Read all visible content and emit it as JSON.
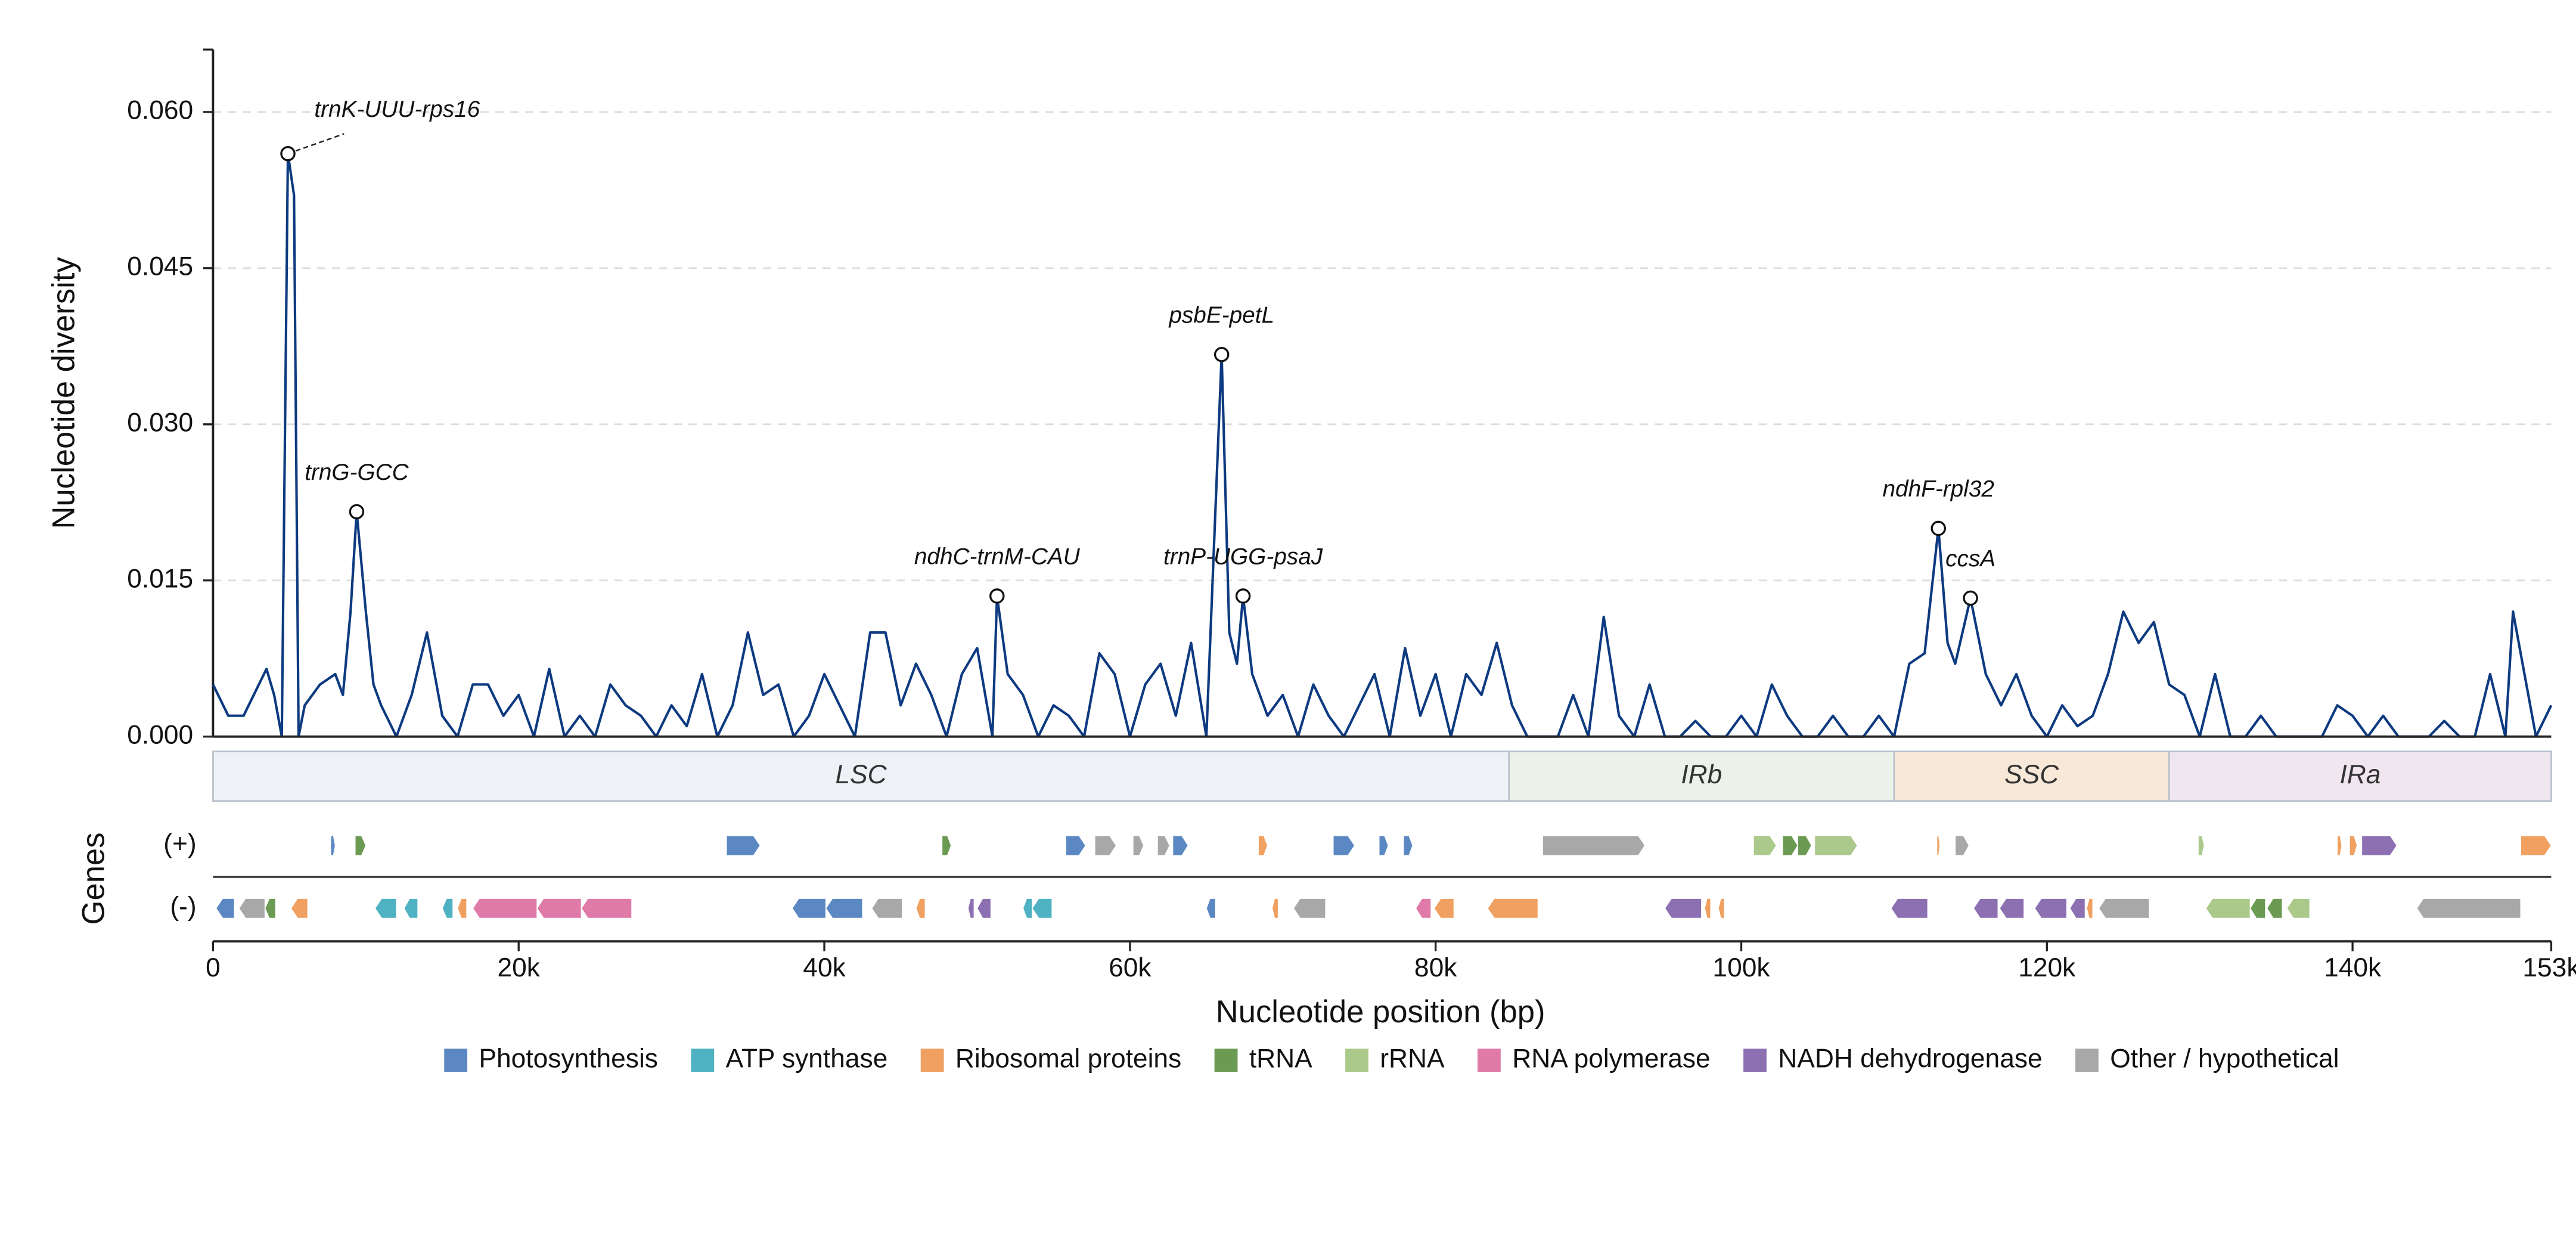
{
  "chart_data": {
    "type": "line",
    "xlabel": "Nucleotide position (bp)",
    "ylabel": "Nucleotide diversity",
    "xlim": [
      0,
      153000
    ],
    "ylim": [
      0,
      0.066
    ],
    "xticks": [
      0,
      {
        "value": 20000,
        "label": "20k"
      },
      {
        "value": 40000,
        "label": "40k"
      },
      {
        "value": 60000,
        "label": "60k"
      },
      {
        "value": 80000,
        "label": "80k"
      },
      {
        "value": 100000,
        "label": "100k"
      },
      {
        "value": 120000,
        "label": "120k"
      },
      {
        "value": 140000,
        "label": "140k"
      },
      {
        "value": 153000,
        "label": "153k"
      }
    ],
    "yticks": [
      {
        "value": 0,
        "label": "0.000"
      },
      {
        "value": 0.015,
        "label": "0.015"
      },
      {
        "value": 0.03,
        "label": "0.030"
      },
      {
        "value": 0.045,
        "label": "0.045"
      },
      {
        "value": 0.06,
        "label": "0.060"
      }
    ],
    "grid": true,
    "x": [
      0,
      1000,
      2000,
      3000,
      3500,
      4000,
      4500,
      4900,
      5300,
      5600,
      6000,
      7000,
      8000,
      8500,
      9000,
      9400,
      10000,
      10500,
      11000,
      12000,
      13000,
      14000,
      15000,
      16000,
      17000,
      18000,
      19000,
      20000,
      21000,
      22000,
      23000,
      24000,
      25000,
      26000,
      27000,
      28000,
      29000,
      30000,
      31000,
      32000,
      33000,
      34000,
      35000,
      36000,
      37000,
      38000,
      39000,
      40000,
      41000,
      42000,
      43000,
      44000,
      45000,
      46000,
      47000,
      48000,
      49000,
      50000,
      51000,
      51300,
      52000,
      53000,
      54000,
      55000,
      56000,
      57000,
      58000,
      59000,
      60000,
      61000,
      62000,
      63000,
      64000,
      65000,
      66000,
      66500,
      67000,
      67400,
      68000,
      69000,
      70000,
      71000,
      72000,
      73000,
      74000,
      75000,
      76000,
      77000,
      78000,
      79000,
      80000,
      81000,
      82000,
      83000,
      84000,
      85000,
      86000,
      87000,
      88000,
      89000,
      90000,
      91000,
      92000,
      93000,
      94000,
      95000,
      96000,
      97000,
      98000,
      99000,
      100000,
      101000,
      102000,
      103000,
      104000,
      105000,
      106000,
      107000,
      108000,
      109000,
      110000,
      111000,
      112000,
      112900,
      113500,
      114000,
      115000,
      116000,
      117000,
      118000,
      119000,
      120000,
      121000,
      122000,
      123000,
      124000,
      125000,
      126000,
      127000,
      128000,
      129000,
      130000,
      131000,
      132000,
      133000,
      134000,
      135000,
      136000,
      137000,
      138000,
      139000,
      140000,
      141000,
      142000,
      143000,
      144000,
      145000,
      146000,
      147000,
      148000,
      149000,
      150000,
      150500,
      151000,
      152000,
      153000
    ],
    "series": [
      {
        "name": "Nucleotide diversity",
        "color": "#0d3a80",
        "values": [
          0.005,
          0.002,
          0.002,
          0.005,
          0.0065,
          0.004,
          0,
          0.056,
          0.052,
          0,
          0.003,
          0.005,
          0.006,
          0.004,
          0.012,
          0.0216,
          0.012,
          0.005,
          0.003,
          0,
          0.004,
          0.01,
          0.002,
          0,
          0.005,
          0.005,
          0.002,
          0.004,
          0,
          0.0065,
          0,
          0.002,
          0,
          0.005,
          0.003,
          0.002,
          0,
          0.003,
          0.001,
          0.006,
          0,
          0.003,
          0.01,
          0.004,
          0.005,
          0,
          0.002,
          0.006,
          0.003,
          0,
          0.01,
          0.01,
          0.003,
          0.007,
          0.004,
          0,
          0.006,
          0.0085,
          0,
          0.0135,
          0.006,
          0.004,
          0,
          0.003,
          0.002,
          0,
          0.008,
          0.006,
          0,
          0.005,
          0.007,
          0.002,
          0.009,
          0,
          0.0367,
          0.01,
          0.007,
          0.0135,
          0.006,
          0.002,
          0.004,
          0,
          0.005,
          0.002,
          0,
          0.003,
          0.006,
          0,
          0.0085,
          0.002,
          0.006,
          0,
          0.006,
          0.004,
          0.009,
          0.003,
          0,
          0,
          0,
          0.004,
          0,
          0.0115,
          0.002,
          0,
          0.005,
          0,
          0,
          0.0015,
          0,
          0,
          0.002,
          0,
          0.005,
          0.002,
          0,
          0,
          0.002,
          0,
          0,
          0.002,
          0,
          0.007,
          0.008,
          0.02,
          0.009,
          0.007,
          0.0133,
          0.006,
          0.003,
          0.006,
          0.002,
          0,
          0.003,
          0.001,
          0.002,
          0.006,
          0.012,
          0.009,
          0.011,
          0.005,
          0.004,
          0,
          0.006,
          0,
          0,
          0.002,
          0,
          0,
          0,
          0,
          0.003,
          0.002,
          0,
          0.002,
          0,
          0,
          0,
          0.0015,
          0,
          0,
          0.006,
          0,
          0.012,
          0.008,
          0,
          0.003
        ]
      }
    ],
    "annotations": [
      {
        "text": "trnK-UUU-rps16",
        "x": 4900,
        "y": 0.056
      },
      {
        "text": "trnG-GCC",
        "x": 9400,
        "y": 0.0216
      },
      {
        "text": "ndhC-trnM-CAU",
        "x": 51300,
        "y": 0.0135
      },
      {
        "text": "psbE-petL",
        "x": 66000,
        "y": 0.0367
      },
      {
        "text": "trnP-UGG-psaJ",
        "x": 67400,
        "y": 0.0135
      },
      {
        "text": "ndhF-rpl32",
        "x": 112900,
        "y": 0.02
      },
      {
        "text": "ccsA",
        "x": 115000,
        "y": 0.0133
      }
    ],
    "regions": [
      {
        "name": "LSC",
        "start": 0,
        "end": 84800,
        "color": "#eef2f6"
      },
      {
        "name": "IRb",
        "start": 84800,
        "end": 110000,
        "color": "#ecf2ea"
      },
      {
        "name": "SSC",
        "start": 110000,
        "end": 128000,
        "color": "#f8e8d8"
      },
      {
        "name": "IRa",
        "start": 128000,
        "end": 153000,
        "color": "#f0e6f0"
      }
    ],
    "genes_label": "Genes",
    "gene_categories": [
      {
        "name": "Photosynthesis",
        "color": "#5b88c2"
      },
      {
        "name": "ATP synthase",
        "color": "#4fb2c2"
      },
      {
        "name": "Ribosomal proteins",
        "color": "#f0a060"
      },
      {
        "name": "tRNA",
        "color": "#6b9a52"
      },
      {
        "name": "rRNA",
        "color": "#aac98a"
      },
      {
        "name": "RNA polymerase",
        "color": "#e07aa8"
      },
      {
        "name": "NADH dehydrogenase",
        "color": "#8c70b2"
      },
      {
        "name": "Other / hypothetical",
        "color": "#a8a8a8"
      }
    ],
    "gene_tracks": [
      {
        "label": "(+)",
        "genes": [
          {
            "start": 7700,
            "end": 8000,
            "category": "Photosynthesis"
          },
          {
            "start": 9300,
            "end": 10000,
            "category": "tRNA"
          },
          {
            "start": 33600,
            "end": 35800,
            "category": "Photosynthesis"
          },
          {
            "start": 47700,
            "end": 48300,
            "category": "tRNA"
          },
          {
            "start": 55800,
            "end": 57100,
            "category": "Photosynthesis"
          },
          {
            "start": 57700,
            "end": 59100,
            "category": "Other / hypothetical"
          },
          {
            "start": 60200,
            "end": 60900,
            "category": "Other / hypothetical"
          },
          {
            "start": 61800,
            "end": 62600,
            "category": "Other / hypothetical"
          },
          {
            "start": 62800,
            "end": 63800,
            "category": "Photosynthesis"
          },
          {
            "start": 68400,
            "end": 69000,
            "category": "Ribosomal proteins"
          },
          {
            "start": 73300,
            "end": 74700,
            "category": "Photosynthesis"
          },
          {
            "start": 76300,
            "end": 76900,
            "category": "Photosynthesis"
          },
          {
            "start": 77900,
            "end": 78500,
            "category": "Photosynthesis"
          },
          {
            "start": 87000,
            "end": 93700,
            "category": "Other / hypothetical"
          },
          {
            "start": 100800,
            "end": 102300,
            "category": "rRNA"
          },
          {
            "start": 102700,
            "end": 103700,
            "category": "tRNA"
          },
          {
            "start": 103700,
            "end": 104600,
            "category": "tRNA"
          },
          {
            "start": 104800,
            "end": 107600,
            "category": "rRNA"
          },
          {
            "start": 112800,
            "end": 113000,
            "category": "Ribosomal proteins"
          },
          {
            "start": 114000,
            "end": 114900,
            "category": "Other / hypothetical"
          },
          {
            "start": 129900,
            "end": 130300,
            "category": "rRNA"
          },
          {
            "start": 139000,
            "end": 139300,
            "category": "Ribosomal proteins"
          },
          {
            "start": 139800,
            "end": 140300,
            "category": "Ribosomal proteins"
          },
          {
            "start": 140600,
            "end": 142900,
            "category": "NADH dehydrogenase"
          },
          {
            "start": 151000,
            "end": 153000,
            "category": "Ribosomal proteins"
          }
        ]
      },
      {
        "label": "(-)",
        "genes": [
          {
            "start": 200,
            "end": 1400,
            "category": "Photosynthesis"
          },
          {
            "start": 1700,
            "end": 3400,
            "category": "Other / hypothetical"
          },
          {
            "start": 3400,
            "end": 4100,
            "category": "tRNA"
          },
          {
            "start": 5100,
            "end": 6200,
            "category": "Ribosomal proteins"
          },
          {
            "start": 10600,
            "end": 12000,
            "category": "ATP synthase"
          },
          {
            "start": 12500,
            "end": 13400,
            "category": "ATP synthase"
          },
          {
            "start": 15000,
            "end": 15700,
            "category": "ATP synthase"
          },
          {
            "start": 16000,
            "end": 16600,
            "category": "Ribosomal proteins"
          },
          {
            "start": 17000,
            "end": 21200,
            "category": "RNA polymerase"
          },
          {
            "start": 21200,
            "end": 24100,
            "category": "RNA polymerase"
          },
          {
            "start": 24100,
            "end": 27400,
            "category": "RNA polymerase"
          },
          {
            "start": 37900,
            "end": 40100,
            "category": "Photosynthesis"
          },
          {
            "start": 40100,
            "end": 42500,
            "category": "Photosynthesis"
          },
          {
            "start": 43100,
            "end": 45100,
            "category": "Other / hypothetical"
          },
          {
            "start": 46000,
            "end": 46600,
            "category": "Ribosomal proteins"
          },
          {
            "start": 49400,
            "end": 49800,
            "category": "NADH dehydrogenase"
          },
          {
            "start": 50000,
            "end": 50900,
            "category": "NADH dehydrogenase"
          },
          {
            "start": 53000,
            "end": 53600,
            "category": "ATP synthase"
          },
          {
            "start": 53600,
            "end": 54900,
            "category": "ATP synthase"
          },
          {
            "start": 65000,
            "end": 65600,
            "category": "Photosynthesis"
          },
          {
            "start": 69300,
            "end": 69700,
            "category": "Ribosomal proteins"
          },
          {
            "start": 70700,
            "end": 72800,
            "category": "Other / hypothetical"
          },
          {
            "start": 78700,
            "end": 79700,
            "category": "RNA polymerase"
          },
          {
            "start": 79900,
            "end": 81200,
            "category": "Ribosomal proteins"
          },
          {
            "start": 83400,
            "end": 86700,
            "category": "Ribosomal proteins"
          },
          {
            "start": 95000,
            "end": 97400,
            "category": "NADH dehydrogenase"
          },
          {
            "start": 97600,
            "end": 98000,
            "category": "Ribosomal proteins"
          },
          {
            "start": 98500,
            "end": 98900,
            "category": "Ribosomal proteins"
          },
          {
            "start": 109800,
            "end": 112200,
            "category": "NADH dehydrogenase"
          },
          {
            "start": 115200,
            "end": 116800,
            "category": "NADH dehydrogenase"
          },
          {
            "start": 116900,
            "end": 118500,
            "category": "NADH dehydrogenase"
          },
          {
            "start": 119200,
            "end": 121300,
            "category": "NADH dehydrogenase"
          },
          {
            "start": 121500,
            "end": 122500,
            "category": "NADH dehydrogenase"
          },
          {
            "start": 122600,
            "end": 123000,
            "category": "Ribosomal proteins"
          },
          {
            "start": 123400,
            "end": 126700,
            "category": "Other / hypothetical"
          },
          {
            "start": 130400,
            "end": 133300,
            "category": "rRNA"
          },
          {
            "start": 133300,
            "end": 134300,
            "category": "tRNA"
          },
          {
            "start": 134400,
            "end": 135400,
            "category": "tRNA"
          },
          {
            "start": 135700,
            "end": 137200,
            "category": "rRNA"
          },
          {
            "start": 144200,
            "end": 151000,
            "category": "Other / hypothetical"
          }
        ]
      }
    ]
  }
}
